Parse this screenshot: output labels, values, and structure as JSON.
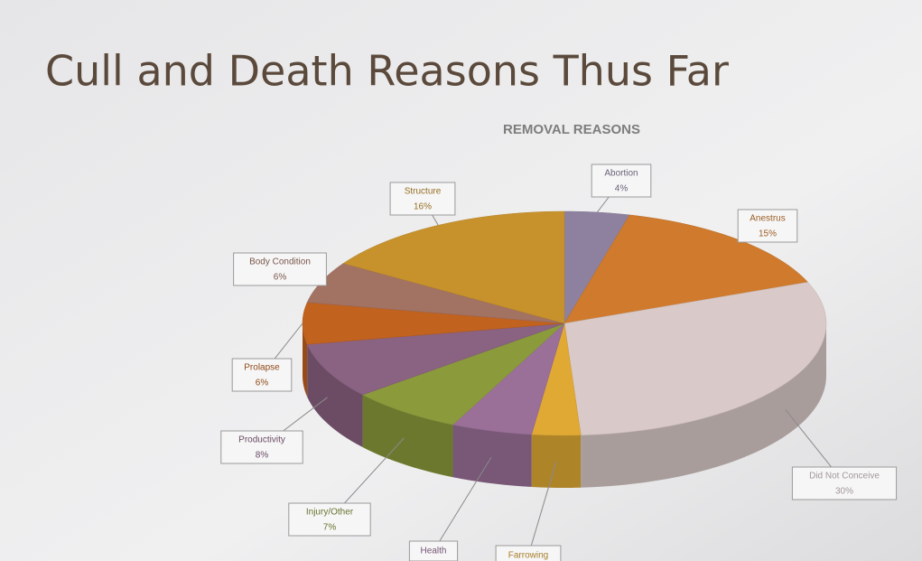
{
  "slide_title": "Cull and Death Reasons Thus Far",
  "chart_data": {
    "type": "pie3d",
    "title": "REMOVAL REASONS",
    "categories": [
      "Abortion",
      "Anestrus",
      "Did Not Conceive",
      "Farrowing",
      "Health",
      "Injury/Other",
      "Productivity",
      "Prolapse",
      "Body Condition",
      "Structure"
    ],
    "values": [
      4,
      15,
      30,
      3,
      5,
      7,
      8,
      6,
      6,
      16
    ],
    "value_labels": [
      "4%",
      "15%",
      "30%",
      null,
      null,
      "7%",
      "8%",
      "6%",
      "6%",
      "16%"
    ],
    "colors": [
      "#8e819f",
      "#cf7a2c",
      "#d9c9c8",
      "#dfa934",
      "#9a6f98",
      "#8b9a3b",
      "#8a6282",
      "#c1621f",
      "#a27262",
      "#c7922c"
    ]
  }
}
